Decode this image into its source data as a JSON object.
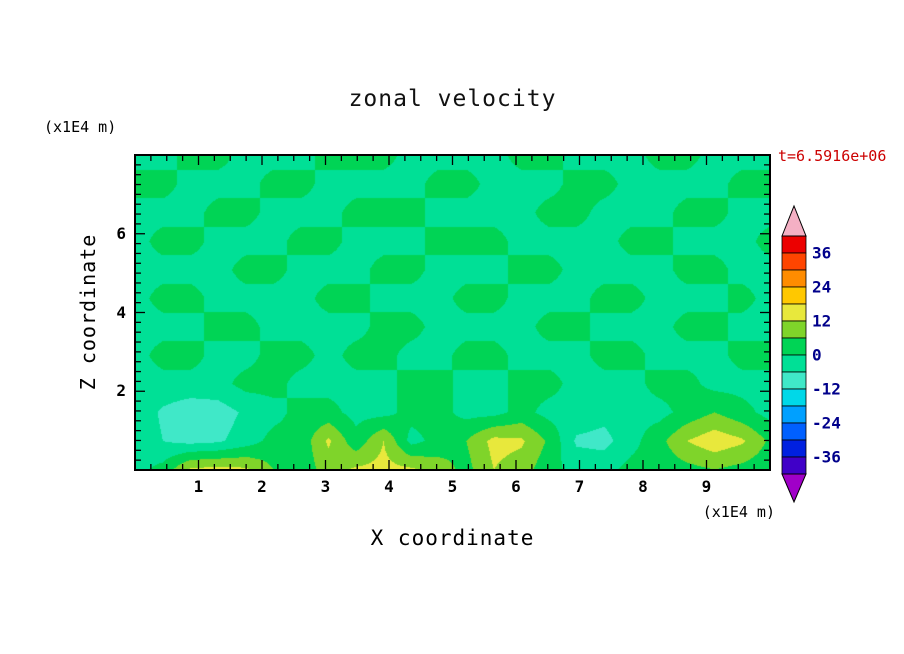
{
  "title": "zonal velocity",
  "time_label": "t=6.5916e+06",
  "axes": {
    "x_label": "X coordinate",
    "y_label": "Z coordinate",
    "x_unit_label": "(x1E4 m)",
    "y_unit_label": "(x1E4 m)",
    "x_ticks": [
      "1",
      "2",
      "3",
      "4",
      "5",
      "6",
      "7",
      "8",
      "9"
    ],
    "y_ticks": [
      "2",
      "4",
      "6"
    ]
  },
  "colors": {
    "time_label": "#cc0000",
    "colorbar_label": "#00008b",
    "frame": "#000000"
  },
  "chart_data": {
    "type": "heatmap",
    "title": "zonal velocity",
    "xlabel": "X coordinate (x1E4 m)",
    "ylabel": "Z coordinate (x1E4 m)",
    "time_annotation": "t=6.5916e+06",
    "x_range": [
      0,
      10
    ],
    "y_range": [
      0,
      8
    ],
    "x_major_ticks": [
      1,
      2,
      3,
      4,
      5,
      6,
      7,
      8,
      9
    ],
    "y_major_ticks": [
      2,
      4,
      6
    ],
    "minor_tick_step": 0.25,
    "levels_min": -42,
    "level_step": 6,
    "levels_max": 42,
    "colorbar_labels": [
      36,
      24,
      12,
      0,
      -12,
      -24,
      -36
    ],
    "colors": [
      "#4000c8",
      "#0020e0",
      "#0060ff",
      "#00a0ff",
      "#00d8e8",
      "#40e8c8",
      "#00e096",
      "#00d455",
      "#7fd42a",
      "#e8e83c",
      "#ffc800",
      "#ff8c00",
      "#ff4500",
      "#ec0000"
    ],
    "below_color": "#a000c8",
    "above_color": "#f4b0c4",
    "grid": {
      "note": "coarse approximation of the contour field; rows top(z=8) to bottom(z=0), cols x=0..10",
      "values": [
        [
          -2,
          -2,
          2,
          2,
          -2,
          -2,
          -2,
          2,
          2,
          2,
          -2,
          -2,
          -2,
          -2,
          2,
          2,
          -2,
          -2,
          -2,
          2,
          2,
          -2,
          -2,
          -2
        ],
        [
          2,
          2,
          -2,
          -2,
          -2,
          2,
          2,
          -2,
          -2,
          -2,
          -2,
          2,
          2,
          -2,
          -2,
          -2,
          2,
          2,
          -2,
          -2,
          -2,
          -2,
          2,
          2
        ],
        [
          -2,
          -2,
          -2,
          2,
          2,
          -2,
          -2,
          -2,
          2,
          2,
          2,
          -2,
          -2,
          -2,
          -2,
          2,
          2,
          -2,
          -2,
          -2,
          2,
          2,
          -2,
          -2
        ],
        [
          -2,
          2,
          2,
          -2,
          -2,
          -2,
          2,
          2,
          -2,
          -2,
          -2,
          2,
          2,
          2,
          -2,
          -2,
          -2,
          -2,
          2,
          2,
          -2,
          -2,
          -2,
          2
        ],
        [
          -2,
          -2,
          -2,
          -2,
          2,
          2,
          -2,
          -2,
          -2,
          2,
          2,
          -2,
          -2,
          -2,
          2,
          2,
          -2,
          -2,
          -2,
          -2,
          2,
          2,
          -2,
          -2
        ],
        [
          -2,
          2,
          2,
          -2,
          -2,
          -2,
          -2,
          2,
          2,
          -2,
          -2,
          -2,
          2,
          2,
          -2,
          -2,
          -2,
          2,
          2,
          -2,
          -2,
          -2,
          2,
          -2
        ],
        [
          -2,
          -2,
          -2,
          2,
          2,
          -2,
          -2,
          -2,
          -2,
          2,
          2,
          -2,
          -2,
          -2,
          -2,
          2,
          2,
          -2,
          -2,
          -2,
          2,
          2,
          -2,
          -2
        ],
        [
          -2,
          2,
          2,
          -2,
          -2,
          2,
          2,
          -2,
          2,
          2,
          -2,
          -2,
          2,
          2,
          -2,
          -2,
          -2,
          2,
          2,
          -2,
          -2,
          -2,
          2,
          2
        ],
        [
          -2,
          -2,
          -2,
          -2,
          2,
          2,
          -2,
          -2,
          -2,
          -2,
          2,
          2,
          -2,
          -2,
          2,
          2,
          -2,
          -2,
          -2,
          2,
          2,
          -2,
          -2,
          -2
        ],
        [
          -2,
          -7,
          -10,
          -9,
          -5,
          -2,
          2,
          2,
          -2,
          -2,
          2,
          2,
          -2,
          -2,
          2,
          -2,
          -2,
          -4,
          -2,
          -2,
          2,
          6,
          2,
          -2
        ],
        [
          -2,
          -6,
          -8,
          -7,
          -3,
          2,
          2,
          13,
          2,
          12,
          -2,
          2,
          6,
          14,
          13,
          5,
          -7,
          -8,
          -2,
          4,
          12,
          16,
          13,
          5
        ],
        [
          -2,
          2,
          13,
          14,
          13,
          6,
          2,
          9,
          13,
          14,
          13,
          9,
          4,
          12,
          9,
          2,
          -2,
          -2,
          2,
          2,
          4,
          6,
          4,
          2
        ]
      ]
    }
  }
}
